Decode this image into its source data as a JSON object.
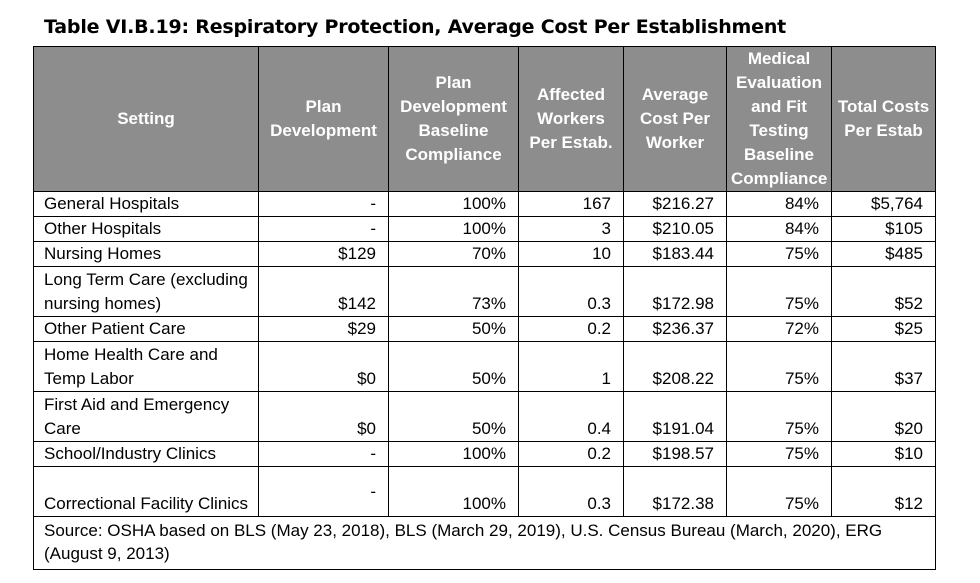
{
  "title": "Table VI.B.19: Respiratory Protection, Average Cost Per Establishment",
  "headers": [
    "Setting",
    "Plan Development",
    "Plan Development Baseline Compliance",
    "Affected Workers Per Estab.",
    "Average Cost Per Worker",
    "Medical Evaluation and Fit Testing Baseline Compliance",
    "Total Costs Per Estab"
  ],
  "rows": [
    [
      "General Hospitals",
      "-",
      "100%",
      "167",
      "$216.27",
      "84%",
      "$5,764"
    ],
    [
      "Other Hospitals",
      "-",
      "100%",
      "3",
      "$210.05",
      "84%",
      "$105"
    ],
    [
      "Nursing Homes",
      "$129",
      "70%",
      "10",
      "$183.44",
      "75%",
      "$485"
    ],
    [
      "Long Term Care (excluding nursing homes)",
      "$142",
      "73%",
      "0.3",
      "$172.98",
      "75%",
      "$52"
    ],
    [
      "Other Patient Care",
      "$29",
      "50%",
      "0.2",
      "$236.37",
      "72%",
      "$25"
    ],
    [
      "Home Health Care and Temp Labor",
      "$0",
      "50%",
      "1",
      "$208.22",
      "75%",
      "$37"
    ],
    [
      "First Aid and Emergency Care",
      "$0",
      "50%",
      "0.4",
      "$191.04",
      "75%",
      "$20"
    ],
    [
      "School/Industry Clinics",
      "-",
      "100%",
      "0.2",
      "$198.57",
      "75%",
      "$10"
    ],
    [
      "Correctional Facility Clinics",
      "-",
      "100%",
      "0.3",
      "$172.38",
      "75%",
      "$12"
    ]
  ],
  "source": "Source: OSHA based on BLS (May 23, 2018), BLS (March 29, 2019), U.S. Census Bureau (March, 2020), ERG (August 9, 2013)"
}
